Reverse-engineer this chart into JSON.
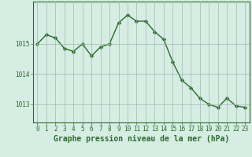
{
  "x": [
    0,
    1,
    2,
    3,
    4,
    5,
    6,
    7,
    8,
    9,
    10,
    11,
    12,
    13,
    14,
    15,
    16,
    17,
    18,
    19,
    20,
    21,
    22,
    23
  ],
  "y": [
    1015.0,
    1015.3,
    1015.2,
    1014.85,
    1014.75,
    1015.0,
    1014.6,
    1014.9,
    1015.0,
    1015.7,
    1015.95,
    1015.75,
    1015.75,
    1015.4,
    1015.15,
    1014.4,
    1013.8,
    1013.55,
    1013.2,
    1013.0,
    1012.9,
    1013.2,
    1012.95,
    1012.9
  ],
  "line_color": "#2d6a2d",
  "marker_color": "#2d6a2d",
  "background_color": "#d5ede3",
  "grid_color": "#a0b8b0",
  "text_color": "#2d6a2d",
  "xlabel": "Graphe pression niveau de la mer (hPa)",
  "ylim": [
    1012.4,
    1016.4
  ],
  "yticks": [
    1013,
    1014,
    1015
  ],
  "xtick_labels": [
    "0",
    "1",
    "2",
    "3",
    "4",
    "5",
    "6",
    "7",
    "8",
    "9",
    "10",
    "11",
    "12",
    "13",
    "14",
    "15",
    "16",
    "17",
    "18",
    "19",
    "20",
    "21",
    "22",
    "23"
  ],
  "xlabel_fontsize": 7,
  "tick_fontsize": 5.5,
  "line_width": 1.0,
  "marker_size": 2.5
}
